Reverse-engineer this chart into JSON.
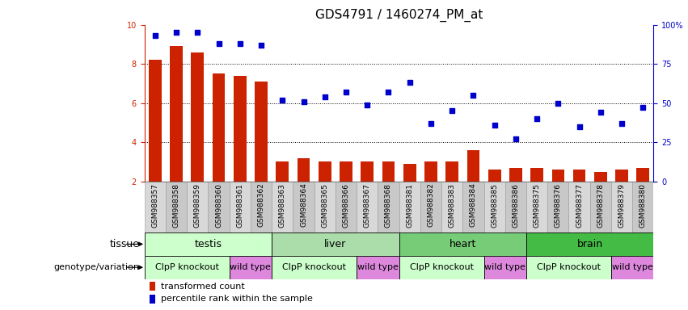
{
  "title": "GDS4791 / 1460274_PM_at",
  "samples": [
    "GSM988357",
    "GSM988358",
    "GSM988359",
    "GSM988360",
    "GSM988361",
    "GSM988362",
    "GSM988363",
    "GSM988364",
    "GSM988365",
    "GSM988366",
    "GSM988367",
    "GSM988368",
    "GSM988381",
    "GSM988382",
    "GSM988383",
    "GSM988384",
    "GSM988385",
    "GSM988386",
    "GSM988375",
    "GSM988376",
    "GSM988377",
    "GSM988378",
    "GSM988379",
    "GSM988380"
  ],
  "bar_values": [
    8.2,
    8.9,
    8.6,
    7.5,
    7.4,
    7.1,
    3.0,
    3.2,
    3.0,
    3.0,
    3.0,
    3.0,
    2.9,
    3.0,
    3.0,
    3.6,
    2.6,
    2.7,
    2.7,
    2.6,
    2.6,
    2.5,
    2.6,
    2.7
  ],
  "scatter_values": [
    93,
    95,
    95,
    88,
    88,
    87,
    52,
    51,
    54,
    57,
    49,
    57,
    63,
    37,
    45,
    55,
    36,
    27,
    40,
    50,
    35,
    44,
    37,
    47
  ],
  "ylim_left": [
    2,
    10
  ],
  "ylim_right": [
    0,
    100
  ],
  "yticks_left": [
    2,
    4,
    6,
    8,
    10
  ],
  "yticks_right": [
    0,
    25,
    50,
    75,
    100
  ],
  "bar_color": "#cc2200",
  "scatter_color": "#0000cc",
  "grid_color": "#000000",
  "tissue_groups": [
    {
      "label": "testis",
      "start": 0,
      "end": 6,
      "color": "#ccffcc"
    },
    {
      "label": "liver",
      "start": 6,
      "end": 12,
      "color": "#aaddaa"
    },
    {
      "label": "heart",
      "start": 12,
      "end": 18,
      "color": "#77cc77"
    },
    {
      "label": "brain",
      "start": 18,
      "end": 24,
      "color": "#44bb44"
    }
  ],
  "genotype_groups": [
    {
      "label": "ClpP knockout",
      "start": 0,
      "end": 4,
      "color": "#ccffcc"
    },
    {
      "label": "wild type",
      "start": 4,
      "end": 6,
      "color": "#dd88dd"
    },
    {
      "label": "ClpP knockout",
      "start": 6,
      "end": 10,
      "color": "#ccffcc"
    },
    {
      "label": "wild type",
      "start": 10,
      "end": 12,
      "color": "#dd88dd"
    },
    {
      "label": "ClpP knockout",
      "start": 12,
      "end": 16,
      "color": "#ccffcc"
    },
    {
      "label": "wild type",
      "start": 16,
      "end": 18,
      "color": "#dd88dd"
    },
    {
      "label": "ClpP knockout",
      "start": 18,
      "end": 22,
      "color": "#ccffcc"
    },
    {
      "label": "wild type",
      "start": 22,
      "end": 24,
      "color": "#dd88dd"
    }
  ],
  "legend_items": [
    {
      "label": "transformed count",
      "color": "#cc2200"
    },
    {
      "label": "percentile rank within the sample",
      "color": "#0000cc"
    }
  ],
  "bar_color_left_axis": "#cc2200",
  "right_axis_color": "#0000cc",
  "title_fontsize": 11,
  "tick_fontsize": 7,
  "label_fontsize": 9,
  "small_fontsize": 8
}
